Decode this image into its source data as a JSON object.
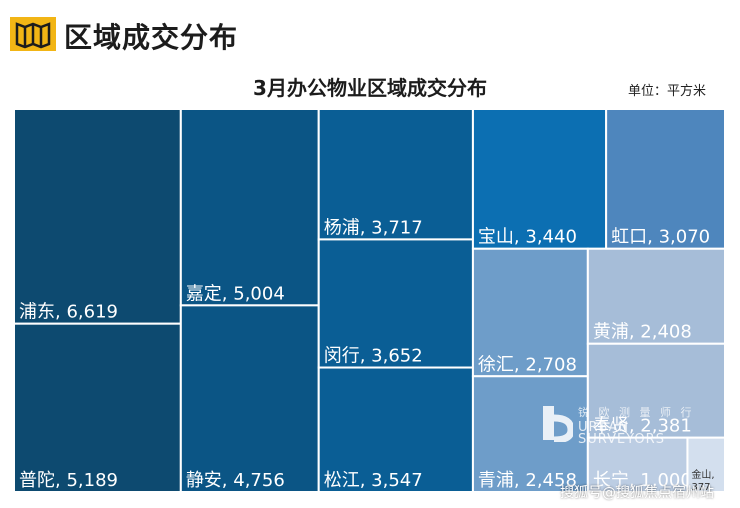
{
  "header": {
    "title": "区域成交分布"
  },
  "chart_data": {
    "type": "treemap",
    "title": "3月办公物业区域成交分布",
    "unit": "单位：平方米",
    "items": [
      {
        "name": "浦东",
        "value": 6619,
        "label": "6,619",
        "color": "#0d4a70"
      },
      {
        "name": "普陀",
        "value": 5189,
        "label": "5,189",
        "color": "#0d4a70"
      },
      {
        "name": "嘉定",
        "value": 5004,
        "label": "5,004",
        "color": "#0b5585"
      },
      {
        "name": "静安",
        "value": 4756,
        "label": "4,756",
        "color": "#0b5585"
      },
      {
        "name": "杨浦",
        "value": 3717,
        "label": "3,717",
        "color": "#0a5e95"
      },
      {
        "name": "闵行",
        "value": 3652,
        "label": "3,652",
        "color": "#0a5e95"
      },
      {
        "name": "松江",
        "value": 3547,
        "label": "3,547",
        "color": "#0a5e95"
      },
      {
        "name": "宝山",
        "value": 3440,
        "label": "3,440",
        "color": "#0c6fb2"
      },
      {
        "name": "虹口",
        "value": 3070,
        "label": "3,070",
        "color": "#4e86bd"
      },
      {
        "name": "徐汇",
        "value": 2708,
        "label": "2,708",
        "color": "#6e9dc9"
      },
      {
        "name": "青浦",
        "value": 2458,
        "label": "2,458",
        "color": "#6e9dc9"
      },
      {
        "name": "黄浦",
        "value": 2408,
        "label": "2,408",
        "color": "#a6bdd8"
      },
      {
        "name": "奉贤",
        "value": 2381,
        "label": "2,381",
        "color": "#a6bdd8"
      },
      {
        "name": "长宁",
        "value": 1000,
        "label": "1,000",
        "color": "#bccde3"
      },
      {
        "name": "金山",
        "value": 377,
        "label": "377",
        "color": "#d3dfee"
      }
    ]
  },
  "watermark": {
    "line1": "锐 欧 测 量 师 行",
    "line2": "URBAN",
    "line3": "SURVEYORS",
    "credit": "搜狐号@搜狐焦点宿州站"
  }
}
